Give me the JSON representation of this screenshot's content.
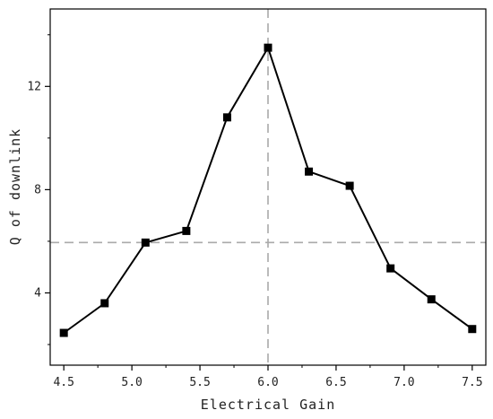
{
  "chart_data": {
    "type": "line",
    "xlabel": "Electrical Gain",
    "ylabel": "Q of downlink",
    "xlim": [
      4.4,
      7.6
    ],
    "ylim": [
      1.2,
      15.0
    ],
    "x_ticks": [
      4.5,
      5.0,
      5.5,
      6.0,
      6.5,
      7.0,
      7.5
    ],
    "x_tick_labels": [
      "4.5",
      "5.0",
      "5.5",
      "6.0",
      "6.5",
      "7.0",
      "7.5"
    ],
    "y_ticks": [
      4,
      8,
      12
    ],
    "y_tick_labels": [
      "4",
      "8",
      "12"
    ],
    "series": [
      {
        "x": [
          4.5,
          4.8,
          5.1,
          5.4,
          5.7,
          6.0,
          6.3,
          6.6,
          6.9,
          7.2,
          7.5
        ],
        "y": [
          2.45,
          3.6,
          5.95,
          6.4,
          10.8,
          13.5,
          8.7,
          8.15,
          4.95,
          3.75,
          2.6
        ],
        "color": "#000000",
        "marker": "square"
      }
    ],
    "reference_lines": [
      {
        "orientation": "horizontal",
        "value": 5.95,
        "color": "#aaaaaa",
        "style": "dashed"
      },
      {
        "orientation": "vertical",
        "value": 6.0,
        "color": "#aaaaaa",
        "style": "dashed"
      }
    ],
    "grid": false
  }
}
